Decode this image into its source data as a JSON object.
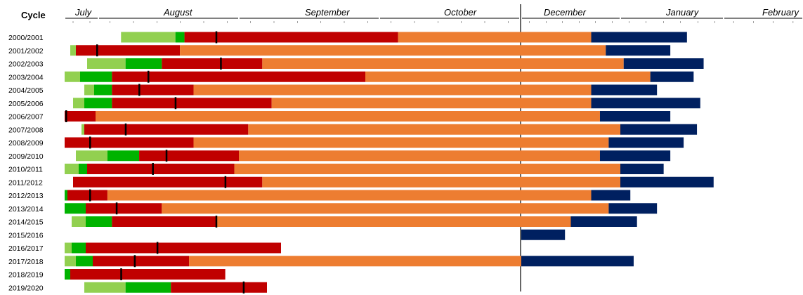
{
  "chart_data": {
    "type": "gantt",
    "row_header": "Cycle",
    "months": [
      {
        "label": "July"
      },
      {
        "label": "August"
      },
      {
        "label": "September"
      },
      {
        "label": "October"
      },
      {
        "label": "December"
      },
      {
        "label": "January"
      },
      {
        "label": "February"
      }
    ],
    "colors": {
      "light_green": "#92d050",
      "green": "#00b300",
      "red": "#c00000",
      "orange": "#ed7d31",
      "navy": "#002060",
      "marker": "#000000"
    },
    "series_order": [
      "light_green",
      "green",
      "red",
      "orange",
      "navy"
    ],
    "rows": [
      {
        "cycle": "2000/2001",
        "segments": [
          [
            "light_green",
            "2000-08-30",
            "2000-09-11"
          ],
          [
            "green",
            "2000-09-11",
            "2000-09-13"
          ],
          [
            "red",
            "2000-09-13",
            "2000-10-29"
          ],
          [
            "orange",
            "2000-10-29",
            "2001-01-05"
          ],
          [
            "navy",
            "2001-01-05",
            "2001-02-04"
          ]
        ],
        "marker": "2000-09-20"
      },
      {
        "cycle": "2001/2002",
        "segments": [
          [
            "light_green",
            "2001-08-05",
            "2001-08-09"
          ],
          [
            "red",
            "2001-08-09",
            "2001-09-12"
          ],
          [
            "orange",
            "2001-09-12",
            "2002-01-10"
          ],
          [
            "navy",
            "2002-01-10",
            "2002-01-30"
          ]
        ],
        "marker": "2001-08-24"
      },
      {
        "cycle": "2002/2003",
        "segments": [
          [
            "light_green",
            "2002-08-17",
            "2002-08-31"
          ],
          [
            "green",
            "2002-08-31",
            "2002-09-08"
          ],
          [
            "red",
            "2002-09-08",
            "2002-09-30"
          ],
          [
            "orange",
            "2002-09-30",
            "2003-01-16"
          ],
          [
            "navy",
            "2003-01-16",
            "2003-02-09"
          ]
        ],
        "marker": "2002-09-21"
      },
      {
        "cycle": "2003/2004",
        "segments": [
          [
            "light_green",
            "2003-07-19",
            "2003-08-12"
          ],
          [
            "green",
            "2003-08-12",
            "2003-08-28"
          ],
          [
            "red",
            "2003-08-28",
            "2003-10-22"
          ],
          [
            "orange",
            "2003-10-22",
            "2004-01-24"
          ],
          [
            "navy",
            "2004-01-24",
            "2004-02-06"
          ]
        ],
        "marker": "2003-09-05"
      },
      {
        "cycle": "2004/2005",
        "segments": [
          [
            "light_green",
            "2004-08-15",
            "2004-08-22"
          ],
          [
            "green",
            "2004-08-22",
            "2004-08-28"
          ],
          [
            "red",
            "2004-08-28",
            "2004-09-15"
          ],
          [
            "orange",
            "2004-09-15",
            "2005-01-05"
          ],
          [
            "navy",
            "2005-01-05",
            "2005-01-26"
          ]
        ],
        "marker": "2004-09-03"
      },
      {
        "cycle": "2005/2006",
        "segments": [
          [
            "light_green",
            "2005-08-07",
            "2005-08-15"
          ],
          [
            "green",
            "2005-08-15",
            "2005-08-28"
          ],
          [
            "red",
            "2005-08-28",
            "2005-10-02"
          ],
          [
            "orange",
            "2005-10-02",
            "2006-01-05"
          ],
          [
            "navy",
            "2006-01-05",
            "2006-02-08"
          ]
        ],
        "marker": "2006-09-11"
      },
      {
        "cycle": "2006/2007",
        "segments": [
          [
            "light_green",
            "2006-07-06",
            "2006-07-14"
          ],
          [
            "green",
            "2006-07-14",
            "2006-07-20"
          ],
          [
            "red",
            "2006-07-20",
            "2006-08-23"
          ],
          [
            "orange",
            "2006-08-23",
            "2007-01-08"
          ],
          [
            "navy",
            "2007-01-08",
            "2007-01-30"
          ]
        ],
        "marker": "2006-08-02"
      },
      {
        "cycle": "2007/2008",
        "segments": [
          [
            "light_green",
            "2007-08-13",
            "2007-08-15"
          ],
          [
            "red",
            "2007-08-15",
            "2007-09-27"
          ],
          [
            "orange",
            "2007-09-27",
            "2008-01-15"
          ],
          [
            "navy",
            "2008-01-15",
            "2008-02-07"
          ]
        ],
        "marker": "2007-08-31"
      },
      {
        "cycle": "2008/2009",
        "segments": [
          [
            "light_green",
            "2008-07-15",
            "2008-07-19"
          ],
          [
            "green",
            "2008-07-19",
            "2008-07-27"
          ],
          [
            "red",
            "2008-07-27",
            "2008-09-15"
          ],
          [
            "orange",
            "2008-09-15",
            "2009-01-11"
          ],
          [
            "navy",
            "2009-01-11",
            "2009-02-03"
          ]
        ],
        "marker": "2008-08-19"
      },
      {
        "cycle": "2009/2010",
        "segments": [
          [
            "light_green",
            "2009-08-09",
            "2009-08-27"
          ],
          [
            "green",
            "2009-08-27",
            "2009-09-03"
          ],
          [
            "red",
            "2009-09-03",
            "2009-09-25"
          ],
          [
            "orange",
            "2009-09-25",
            "2010-01-08"
          ],
          [
            "navy",
            "2010-01-08",
            "2010-01-30"
          ]
        ],
        "marker": "2010-09-09"
      },
      {
        "cycle": "2010/2011",
        "segments": [
          [
            "light_green",
            "2010-07-28",
            "2010-08-11"
          ],
          [
            "green",
            "2010-08-11",
            "2010-08-17"
          ],
          [
            "red",
            "2010-08-17",
            "2010-09-24"
          ],
          [
            "orange",
            "2010-09-24",
            "2011-01-15"
          ],
          [
            "navy",
            "2011-01-15",
            "2011-01-28"
          ]
        ],
        "marker": "2010-09-06"
      },
      {
        "cycle": "2011/2012",
        "segments": [
          [
            "red",
            "2011-08-07",
            "2011-09-30"
          ],
          [
            "orange",
            "2011-09-30",
            "2012-01-15"
          ],
          [
            "navy",
            "2012-01-15",
            "2012-02-12"
          ]
        ],
        "marker": "2011-09-22"
      },
      {
        "cycle": "2012/2013",
        "segments": [
          [
            "light_green",
            "2012-07-23",
            "2012-07-27"
          ],
          [
            "green",
            "2012-07-27",
            "2012-08-03"
          ],
          [
            "red",
            "2012-08-03",
            "2012-08-27"
          ],
          [
            "orange",
            "2012-08-27",
            "2013-01-05"
          ],
          [
            "navy",
            "2013-01-05",
            "2013-01-18"
          ]
        ],
        "marker": "2012-08-19"
      },
      {
        "cycle": "2013/2014",
        "segments": [
          [
            "light_green",
            "2013-07-17",
            "2013-07-31"
          ],
          [
            "green",
            "2013-07-31",
            "2013-08-16"
          ],
          [
            "red",
            "2013-08-16",
            "2013-09-08"
          ],
          [
            "orange",
            "2013-09-08",
            "2014-01-11"
          ],
          [
            "navy",
            "2014-01-11",
            "2014-01-26"
          ]
        ],
        "marker": "2013-08-29"
      },
      {
        "cycle": "2014/2015",
        "segments": [
          [
            "light_green",
            "2014-08-06",
            "2014-08-16"
          ],
          [
            "green",
            "2014-08-16",
            "2014-08-28"
          ],
          [
            "red",
            "2014-08-28",
            "2014-09-20"
          ],
          [
            "orange",
            "2014-09-20",
            "2014-12-29"
          ],
          [
            "navy",
            "2014-12-29",
            "2015-01-20"
          ]
        ],
        "marker": "2014-09-20"
      },
      {
        "cycle": "2015/2016",
        "segments": [
          [
            "navy",
            "2015-12-12",
            "2015-12-27"
          ]
        ],
        "marker": null
      },
      {
        "cycle": "2016/2017",
        "segments": [
          [
            "light_green",
            "2016-07-23",
            "2016-08-06"
          ],
          [
            "green",
            "2016-08-06",
            "2016-08-16"
          ],
          [
            "red",
            "2016-08-16",
            "2016-10-04"
          ]
        ],
        "marker": "2016-09-07"
      },
      {
        "cycle": "2017/2018",
        "segments": [
          [
            "light_green",
            "2017-07-27",
            "2017-08-09"
          ],
          [
            "green",
            "2017-08-09",
            "2017-08-21"
          ],
          [
            "red",
            "2017-08-21",
            "2017-09-14"
          ],
          [
            "orange",
            "2017-09-14",
            "2017-12-11"
          ],
          [
            "navy",
            "2017-12-11",
            "2018-01-19"
          ]
        ],
        "marker": "2017-09-02"
      },
      {
        "cycle": "2018/2019",
        "segments": [
          [
            "light_green",
            "2018-07-04",
            "2018-07-26"
          ],
          [
            "green",
            "2018-07-26",
            "2018-08-05"
          ],
          [
            "red",
            "2018-08-05",
            "2018-09-22"
          ]
        ],
        "marker": "2018-08-30"
      },
      {
        "cycle": "2019/2020",
        "segments": [
          [
            "light_green",
            "2019-08-15",
            "2019-08-31"
          ],
          [
            "green",
            "2019-08-31",
            "2019-09-10"
          ],
          [
            "red",
            "2019-09-10",
            "2019-10-01"
          ]
        ],
        "marker": "2019-09-26"
      }
    ]
  }
}
